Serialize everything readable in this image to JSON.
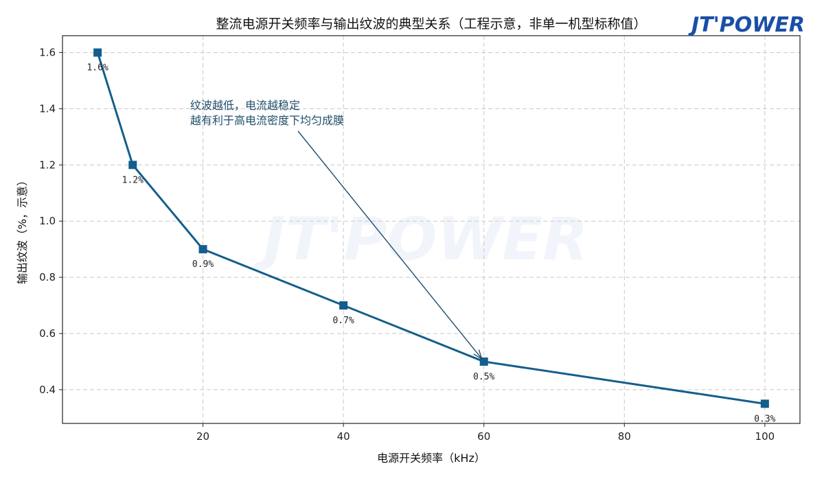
{
  "chart_data": {
    "type": "line",
    "title": "整流电源开关频率与输出纹波的典型关系（工程示意，非单一机型标称值）",
    "xlabel": "电源开关频率（kHz）",
    "ylabel": "输出纹波（%，示意）",
    "xlim": [
      0,
      105
    ],
    "ylim": [
      0.28,
      1.66
    ],
    "xticks": [
      "20",
      "40",
      "60",
      "80",
      "100"
    ],
    "yticks": [
      "0.4",
      "0.6",
      "0.8",
      "1.0",
      "1.2",
      "1.4",
      "1.6"
    ],
    "grid": true,
    "series": [
      {
        "x": [
          5,
          10,
          20,
          40,
          60,
          100
        ],
        "y": [
          1.6,
          1.2,
          0.9,
          0.7,
          0.5,
          0.35
        ],
        "point_labels": [
          "1.6%",
          "1.2%",
          "0.9%",
          "0.7%",
          "0.5%",
          "0.3%"
        ],
        "color": "#135e8c",
        "marker": "square"
      }
    ],
    "annotation": {
      "lines": [
        "纹波越低，电流越稳定",
        "越有利于高电流密度下均匀成膜"
      ],
      "target_x": 60,
      "target_y": 0.5,
      "color": "#1f4e6b"
    }
  },
  "logo": {
    "text": "JT'POWER",
    "color": "#1a4fa8"
  }
}
